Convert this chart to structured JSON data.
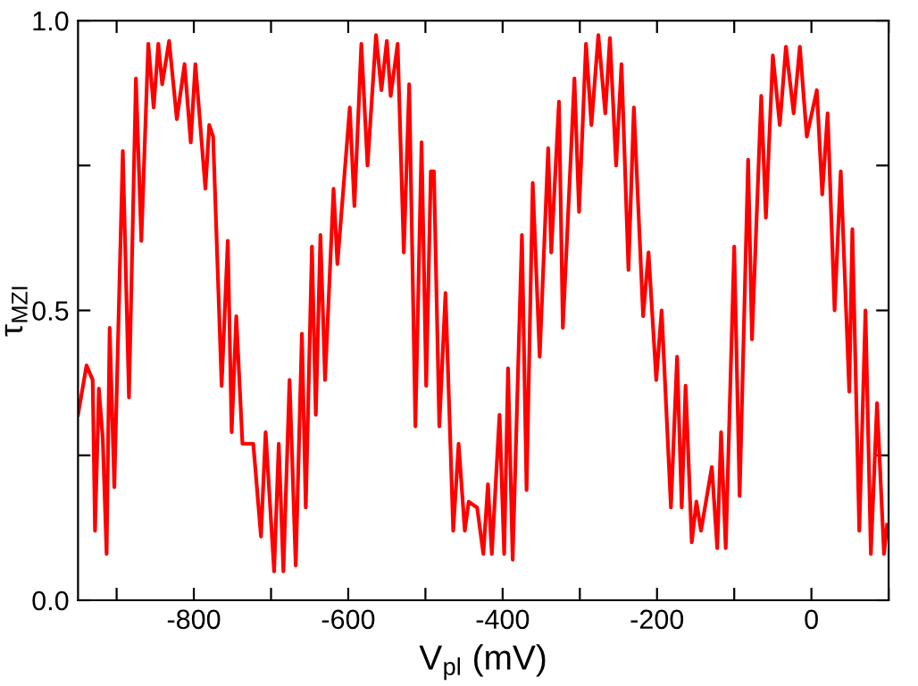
{
  "chart_data": {
    "type": "line",
    "xlabel": "V$_{pl}$ (mV)",
    "ylabel": "τ$_{MZI}$",
    "xlim": [
      -950,
      100
    ],
    "ylim": [
      0,
      1
    ],
    "xticks": [
      {
        "value": -900,
        "label": null
      },
      -800,
      {
        "value": -700,
        "label": null
      },
      -600,
      {
        "value": -500,
        "label": null
      },
      -400,
      {
        "value": -300,
        "label": null
      },
      -200,
      {
        "value": -100,
        "label": null
      },
      0,
      {
        "value": 100,
        "label": null
      }
    ],
    "yticks": [
      {
        "value": 0,
        "label": "0.0"
      },
      {
        "value": 0.25,
        "label": null
      },
      0.5,
      {
        "value": 0.75,
        "label": null
      },
      {
        "value": 1,
        "label": "1.0"
      }
    ],
    "grid": false,
    "legend": false,
    "marker": "none",
    "line_style": "solid",
    "series": [
      {
        "color": "#ff0000",
        "x": [
          -950,
          -939,
          -931,
          -928,
          -923,
          -918,
          -913,
          -909,
          -903,
          -892,
          -884,
          -875,
          -868,
          -859,
          -852,
          -846,
          -841,
          -832,
          -822,
          -812,
          -804,
          -798,
          -785,
          -780,
          -775,
          -764,
          -756,
          -751,
          -745,
          -737,
          -723,
          -713,
          -707,
          -696,
          -690,
          -684,
          -676,
          -668,
          -660,
          -655,
          -647,
          -642,
          -636,
          -630,
          -619,
          -614,
          -598,
          -592,
          -583,
          -575,
          -564,
          -557,
          -550,
          -545,
          -536,
          -528,
          -521,
          -513,
          -505,
          -499,
          -493,
          -489,
          -482,
          -474,
          -464,
          -457,
          -449,
          -444,
          -433,
          -425,
          -419,
          -414,
          -404,
          -398,
          -393,
          -387,
          -375,
          -369,
          -361,
          -352,
          -341,
          -337,
          -327,
          -322,
          -307,
          -301,
          -292,
          -285,
          -276,
          -267,
          -261,
          -253,
          -246,
          -237,
          -230,
          -218,
          -211,
          -201,
          -194,
          -182,
          -174,
          -168,
          -163,
          -155,
          -149,
          -143,
          -129,
          -122,
          -117,
          -111,
          -100,
          -93,
          -82,
          -77,
          -65,
          -59,
          -50,
          -41,
          -33,
          -23,
          -15,
          -6,
          7,
          14,
          21,
          30,
          38,
          49,
          53,
          62,
          70,
          77,
          85,
          94,
          98
        ],
        "values": [
          0.32,
          0.405,
          0.38,
          0.12,
          0.365,
          0.28,
          0.08,
          0.47,
          0.195,
          0.775,
          0.35,
          0.9,
          0.62,
          0.96,
          0.85,
          0.96,
          0.89,
          0.965,
          0.83,
          0.925,
          0.79,
          0.925,
          0.71,
          0.82,
          0.8,
          0.37,
          0.62,
          0.29,
          0.49,
          0.27,
          0.27,
          0.11,
          0.29,
          0.05,
          0.27,
          0.05,
          0.38,
          0.06,
          0.46,
          0.16,
          0.61,
          0.32,
          0.63,
          0.38,
          0.71,
          0.58,
          0.85,
          0.68,
          0.96,
          0.75,
          0.975,
          0.88,
          0.965,
          0.87,
          0.96,
          0.6,
          0.89,
          0.3,
          0.79,
          0.37,
          0.74,
          0.74,
          0.3,
          0.53,
          0.12,
          0.27,
          0.12,
          0.17,
          0.16,
          0.08,
          0.2,
          0.08,
          0.32,
          0.08,
          0.4,
          0.07,
          0.63,
          0.19,
          0.72,
          0.42,
          0.78,
          0.6,
          0.86,
          0.47,
          0.9,
          0.67,
          0.96,
          0.82,
          0.975,
          0.84,
          0.97,
          0.75,
          0.925,
          0.57,
          0.85,
          0.49,
          0.6,
          0.38,
          0.5,
          0.16,
          0.42,
          0.16,
          0.37,
          0.1,
          0.17,
          0.12,
          0.23,
          0.09,
          0.29,
          0.09,
          0.61,
          0.18,
          0.76,
          0.45,
          0.87,
          0.66,
          0.94,
          0.82,
          0.955,
          0.84,
          0.955,
          0.8,
          0.88,
          0.7,
          0.84,
          0.5,
          0.74,
          0.36,
          0.64,
          0.12,
          0.5,
          0.08,
          0.34,
          0.08,
          0.13
        ]
      }
    ]
  }
}
